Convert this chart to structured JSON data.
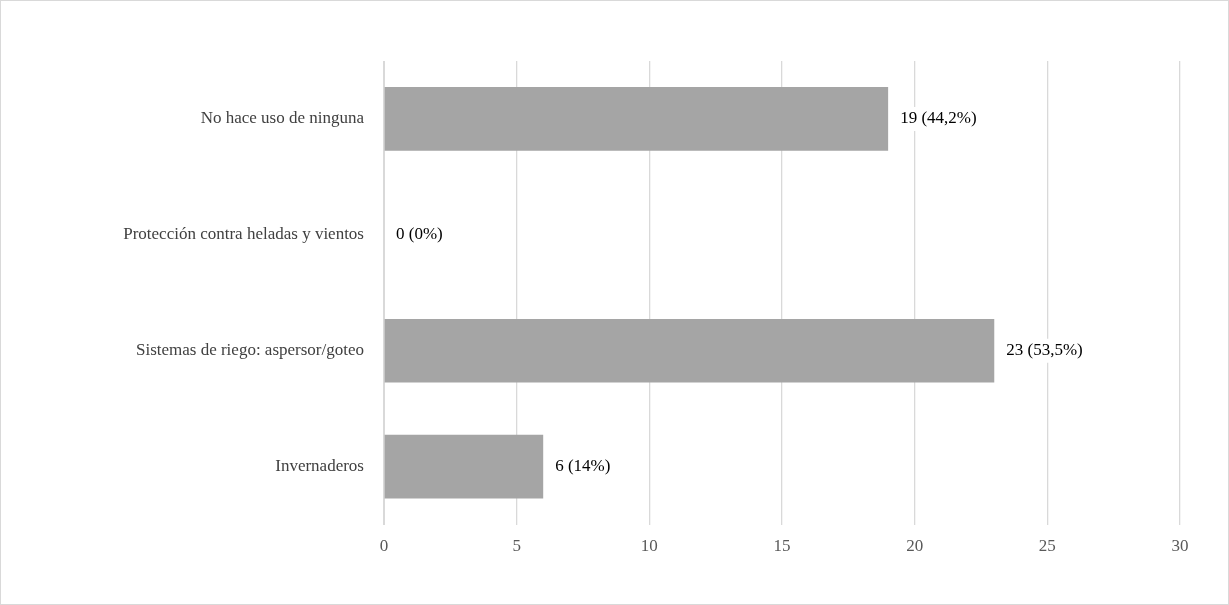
{
  "chart_data": {
    "type": "bar",
    "orientation": "horizontal",
    "categories": [
      "No hace uso de ninguna",
      "Protección contra heladas y vientos",
      "Sistemas de riego: aspersor/goteo",
      "Invernaderos"
    ],
    "values": [
      19,
      0,
      23,
      6
    ],
    "value_labels": [
      "19 (44,2%)",
      "0 (0%)",
      "23 (53,5%)",
      "6 (14%)"
    ],
    "color": "#a5a5a5",
    "xlim": [
      0,
      30
    ],
    "xticks": [
      0,
      5,
      10,
      15,
      20,
      25,
      30
    ],
    "grid": "x",
    "legend": false
  }
}
